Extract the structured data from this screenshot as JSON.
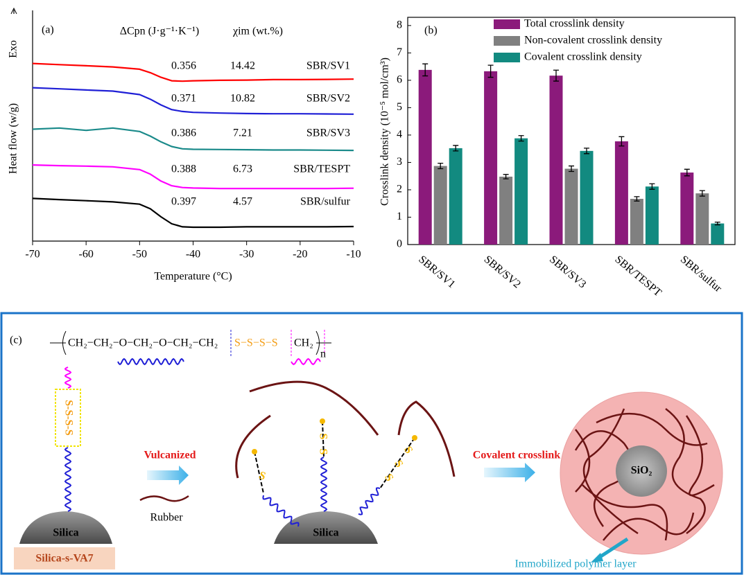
{
  "chart_data": [
    {
      "type": "line",
      "panel_label": "(a)",
      "exo_label": "Exo",
      "x_label": "Temperature (°C)",
      "y_label": "Heat flow (w/g)",
      "annotation_headers": [
        "ΔCpn (J·g⁻¹·K⁻¹)",
        "χim (wt.%)"
      ],
      "x": [
        -70,
        -65,
        -60,
        -55,
        -50,
        -48,
        -46,
        -44,
        -42,
        -40,
        -35,
        -30,
        -25,
        -20,
        -15,
        -10
      ],
      "xlim": [
        -70,
        -10
      ],
      "xticks": [
        -70,
        -60,
        -50,
        -40,
        -30,
        -20,
        -10
      ],
      "ylim": [
        0,
        10
      ],
      "series": [
        {
          "name": "SBR/SV1",
          "color": "#ff0000",
          "delta_cp": 0.356,
          "chi_im": 14.42,
          "values": [
            7.7,
            7.65,
            7.6,
            7.55,
            7.45,
            7.3,
            7.1,
            6.95,
            6.93,
            6.95,
            6.97,
            6.98,
            7.0,
            7.0,
            7.01,
            7.02
          ]
        },
        {
          "name": "SBR/SV2",
          "color": "#1f1fd6",
          "delta_cp": 0.371,
          "chi_im": 10.82,
          "values": [
            6.65,
            6.6,
            6.55,
            6.5,
            6.35,
            6.15,
            5.9,
            5.7,
            5.62,
            5.58,
            5.55,
            5.53,
            5.52,
            5.52,
            5.51,
            5.5
          ]
        },
        {
          "name": "SBR/SV3",
          "color": "#1a8a8a",
          "delta_cp": 0.386,
          "chi_im": 7.21,
          "values": [
            4.85,
            4.9,
            4.8,
            4.9,
            4.75,
            4.55,
            4.3,
            4.1,
            4.0,
            3.98,
            3.97,
            3.96,
            3.95,
            3.95,
            3.94,
            3.93
          ]
        },
        {
          "name": "SBR/TESPT",
          "color": "#ff00ff",
          "delta_cp": 0.388,
          "chi_im": 6.73,
          "values": [
            3.3,
            3.27,
            3.25,
            3.22,
            3.1,
            2.9,
            2.6,
            2.4,
            2.32,
            2.3,
            2.28,
            2.28,
            2.28,
            2.28,
            2.28,
            2.29
          ]
        },
        {
          "name": "SBR/sulfur",
          "color": "#000000",
          "delta_cp": 0.397,
          "chi_im": 4.57,
          "values": [
            1.85,
            1.8,
            1.75,
            1.7,
            1.6,
            1.4,
            1.05,
            0.75,
            0.62,
            0.6,
            0.6,
            0.62,
            0.62,
            0.62,
            0.62,
            0.63
          ]
        }
      ]
    },
    {
      "type": "bar",
      "panel_label": "(b)",
      "y_label": "Crosslink density (10⁻⁵ mol/cm³)",
      "categories": [
        "SBR/SV1",
        "SBR/SV2",
        "SBR/SV3",
        "SBR/TESPT",
        "SBR/sulfur"
      ],
      "ylim": [
        0,
        8.3
      ],
      "yticks": [
        0,
        1,
        2,
        3,
        4,
        5,
        6,
        7,
        8
      ],
      "legend": "top-right",
      "series": [
        {
          "name": "Total crosslink density",
          "color": "#8b1a7b",
          "values": [
            6.38,
            6.33,
            6.17,
            3.77,
            2.63
          ],
          "errors": [
            0.22,
            0.22,
            0.2,
            0.17,
            0.12
          ]
        },
        {
          "name": "Non-covalent crosslink density",
          "color": "#808080",
          "values": [
            2.87,
            2.48,
            2.77,
            1.67,
            1.87
          ],
          "errors": [
            0.1,
            0.08,
            0.1,
            0.08,
            0.1
          ]
        },
        {
          "name": "Covalent crosslink density",
          "color": "#128a80",
          "values": [
            3.52,
            3.88,
            3.42,
            2.12,
            0.77
          ],
          "errors": [
            0.1,
            0.1,
            0.1,
            0.1,
            0.05
          ]
        }
      ]
    }
  ],
  "diagram": {
    "panel_label": "(c)",
    "formula_main": "CH₂−CH₂−O−CH₂−O−CH₂−CH₂",
    "formula_sulfur": "S−S−S−S",
    "formula_end": "CH₂",
    "formula_n": "n",
    "tether_sulfur": "S-S-S-S",
    "silica": "Silica",
    "vulcanized": "Vulcanized",
    "rubber": "Rubber",
    "crosslink_letters": [
      "S",
      "S",
      "S",
      "S",
      "S",
      "S"
    ],
    "covalent_crosslink": "Covalent crosslink",
    "sio2": "SiO₂",
    "immobilized_layer": "Immobilized polymer layer",
    "sample_name": "Silica-s-VA7"
  }
}
